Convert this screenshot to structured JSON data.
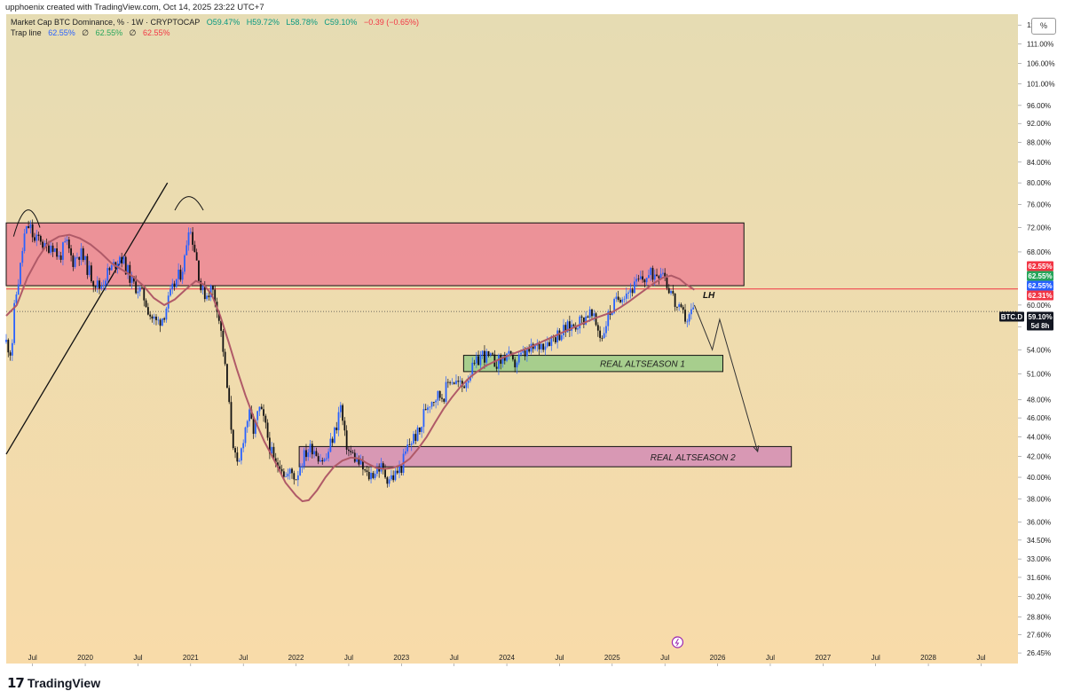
{
  "header": {
    "credit": "upphoenix created with TradingView.com, Oct 14, 2025 23:22 UTC+7",
    "symbol_line": {
      "name": "Market Cap BTC Dominance, % · 1W · CRYPTOCAP",
      "open": "O59.47%",
      "high": "H59.72%",
      "low": "L58.78%",
      "close": "C59.10%",
      "change": "−0.39 (−0.65%)"
    },
    "indicator_line": {
      "name": "Trap line",
      "v1": "62.55%",
      "sep1": "∅",
      "v2": "62.55%",
      "sep2": "∅",
      "v3": "62.55%"
    },
    "scale_button": "%"
  },
  "footer": {
    "brand": "TradingView",
    "brand_mark": "17"
  },
  "colors": {
    "bg_top": "#e6dcb3",
    "bg_bottom": "#f8dba9",
    "up": "#2962ff",
    "down": "#111111",
    "ma": "#b05a68",
    "red_zone": "#ec8a96",
    "green_zone": "#9fcc8a",
    "purple_zone": "#d590b5",
    "hline_red": "#f23645",
    "blue": "#2962ff",
    "green": "#26a65b",
    "red": "#f23645"
  },
  "chart_data": {
    "type": "candlestick",
    "scale": "log",
    "ylim": [
      25.8,
      119
    ],
    "x_range": [
      "2019-04",
      "2028-10"
    ],
    "x_ticks": [
      {
        "t": 2019.5,
        "label": "Jul"
      },
      {
        "t": 2020.0,
        "label": "2020"
      },
      {
        "t": 2020.5,
        "label": "Jul"
      },
      {
        "t": 2021.0,
        "label": "2021"
      },
      {
        "t": 2021.5,
        "label": "Jul"
      },
      {
        "t": 2022.0,
        "label": "2022"
      },
      {
        "t": 2022.5,
        "label": "Jul"
      },
      {
        "t": 2023.0,
        "label": "2023"
      },
      {
        "t": 2023.5,
        "label": "Jul"
      },
      {
        "t": 2024.0,
        "label": "2024"
      },
      {
        "t": 2024.5,
        "label": "Jul"
      },
      {
        "t": 2025.0,
        "label": "2025"
      },
      {
        "t": 2025.5,
        "label": "Jul"
      },
      {
        "t": 2026.0,
        "label": "2026"
      },
      {
        "t": 2026.5,
        "label": "Jul"
      },
      {
        "t": 2027.0,
        "label": "2027"
      },
      {
        "t": 2027.5,
        "label": "Jul"
      },
      {
        "t": 2028.0,
        "label": "2028"
      },
      {
        "t": 2028.5,
        "label": "Jul"
      }
    ],
    "y_ticks": [
      {
        "v": 116,
        "label": "116.00%"
      },
      {
        "v": 111,
        "label": "111.00%"
      },
      {
        "v": 106,
        "label": "106.00%"
      },
      {
        "v": 101,
        "label": "101.00%"
      },
      {
        "v": 96,
        "label": "96.00%"
      },
      {
        "v": 92,
        "label": "92.00%"
      },
      {
        "v": 88,
        "label": "88.00%"
      },
      {
        "v": 84,
        "label": "84.00%"
      },
      {
        "v": 80,
        "label": "80.00%"
      },
      {
        "v": 76,
        "label": "76.00%"
      },
      {
        "v": 72,
        "label": "72.00%"
      },
      {
        "v": 68,
        "label": "68.00%"
      },
      {
        "v": 60,
        "label": "60.00%"
      },
      {
        "v": 57,
        "label": "57.00%"
      },
      {
        "v": 54,
        "label": "54.00%"
      },
      {
        "v": 51,
        "label": "51.00%"
      },
      {
        "v": 48,
        "label": "48.00%"
      },
      {
        "v": 46,
        "label": "46.00%"
      },
      {
        "v": 44,
        "label": "44.00%"
      },
      {
        "v": 42,
        "label": "42.00%"
      },
      {
        "v": 40,
        "label": "40.00%"
      },
      {
        "v": 38,
        "label": "38.00%"
      },
      {
        "v": 36,
        "label": "36.00%"
      },
      {
        "v": 34.5,
        "label": "34.50%"
      },
      {
        "v": 33,
        "label": "33.00%"
      },
      {
        "v": 31.6,
        "label": "31.60%"
      },
      {
        "v": 30.2,
        "label": "30.20%"
      },
      {
        "v": 28.8,
        "label": "28.80%"
      },
      {
        "v": 27.6,
        "label": "27.60%"
      },
      {
        "v": 26.45,
        "label": "26.45%"
      }
    ],
    "price_path": [
      [
        2019.25,
        55.0
      ],
      [
        2019.3,
        53.5
      ],
      [
        2019.33,
        60.0
      ],
      [
        2019.38,
        65.0
      ],
      [
        2019.42,
        70.5
      ],
      [
        2019.47,
        72.5
      ],
      [
        2019.52,
        69.5
      ],
      [
        2019.57,
        70.5
      ],
      [
        2019.62,
        68.3
      ],
      [
        2019.68,
        69.5
      ],
      [
        2019.75,
        67.0
      ],
      [
        2019.82,
        69.5
      ],
      [
        2019.88,
        66.5
      ],
      [
        2019.95,
        68.0
      ],
      [
        2020.02,
        65.5
      ],
      [
        2020.08,
        63.5
      ],
      [
        2020.14,
        62.5
      ],
      [
        2020.2,
        64.5
      ],
      [
        2020.28,
        66.0
      ],
      [
        2020.33,
        67.5
      ],
      [
        2020.4,
        65.0
      ],
      [
        2020.45,
        63.0
      ],
      [
        2020.5,
        62.5
      ],
      [
        2020.56,
        61.0
      ],
      [
        2020.62,
        58.5
      ],
      [
        2020.68,
        57.5
      ],
      [
        2020.74,
        58.5
      ],
      [
        2020.8,
        61.0
      ],
      [
        2020.86,
        63.5
      ],
      [
        2020.9,
        64.5
      ],
      [
        2020.94,
        66.5
      ],
      [
        2020.98,
        72.5
      ],
      [
        2021.02,
        70.0
      ],
      [
        2021.06,
        66.5
      ],
      [
        2021.1,
        62.0
      ],
      [
        2021.15,
        61.5
      ],
      [
        2021.2,
        62.5
      ],
      [
        2021.25,
        60.0
      ],
      [
        2021.3,
        55.0
      ],
      [
        2021.34,
        50.0
      ],
      [
        2021.38,
        45.5
      ],
      [
        2021.42,
        42.0
      ],
      [
        2021.45,
        40.5
      ],
      [
        2021.5,
        44.0
      ],
      [
        2021.55,
        46.5
      ],
      [
        2021.6,
        44.5
      ],
      [
        2021.65,
        47.0
      ],
      [
        2021.7,
        45.5
      ],
      [
        2021.75,
        43.0
      ],
      [
        2021.8,
        41.0
      ],
      [
        2021.85,
        41.5
      ],
      [
        2021.9,
        40.0
      ],
      [
        2021.95,
        40.5
      ],
      [
        2022.0,
        40.0
      ],
      [
        2022.05,
        41.5
      ],
      [
        2022.1,
        42.5
      ],
      [
        2022.16,
        43.0
      ],
      [
        2022.22,
        42.0
      ],
      [
        2022.28,
        41.5
      ],
      [
        2022.32,
        43.0
      ],
      [
        2022.38,
        45.0
      ],
      [
        2022.42,
        47.5
      ],
      [
        2022.46,
        44.0
      ],
      [
        2022.5,
        42.5
      ],
      [
        2022.55,
        42.0
      ],
      [
        2022.62,
        41.0
      ],
      [
        2022.68,
        40.0
      ],
      [
        2022.74,
        40.5
      ],
      [
        2022.8,
        41.0
      ],
      [
        2022.86,
        40.0
      ],
      [
        2022.92,
        40.0
      ],
      [
        2023.0,
        41.0
      ],
      [
        2023.06,
        43.0
      ],
      [
        2023.12,
        44.0
      ],
      [
        2023.18,
        44.5
      ],
      [
        2023.22,
        47.0
      ],
      [
        2023.28,
        48.0
      ],
      [
        2023.34,
        48.5
      ],
      [
        2023.4,
        48.5
      ],
      [
        2023.46,
        50.5
      ],
      [
        2023.52,
        50.0
      ],
      [
        2023.58,
        49.5
      ],
      [
        2023.64,
        51.0
      ],
      [
        2023.7,
        52.0
      ],
      [
        2023.76,
        53.5
      ],
      [
        2023.82,
        53.0
      ],
      [
        2023.88,
        52.5
      ],
      [
        2023.94,
        52.5
      ],
      [
        2024.0,
        53.5
      ],
      [
        2024.06,
        52.0
      ],
      [
        2024.12,
        53.0
      ],
      [
        2024.18,
        53.5
      ],
      [
        2024.24,
        54.0
      ],
      [
        2024.3,
        54.5
      ],
      [
        2024.36,
        55.0
      ],
      [
        2024.42,
        55.5
      ],
      [
        2024.48,
        56.0
      ],
      [
        2024.54,
        56.5
      ],
      [
        2024.6,
        57.0
      ],
      [
        2024.66,
        57.5
      ],
      [
        2024.72,
        58.0
      ],
      [
        2024.78,
        59.0
      ],
      [
        2024.84,
        57.5
      ],
      [
        2024.9,
        55.5
      ],
      [
        2024.96,
        58.5
      ],
      [
        2025.02,
        60.0
      ],
      [
        2025.08,
        61.5
      ],
      [
        2025.14,
        62.0
      ],
      [
        2025.2,
        62.5
      ],
      [
        2025.26,
        63.5
      ],
      [
        2025.32,
        64.0
      ],
      [
        2025.38,
        64.5
      ],
      [
        2025.44,
        65.0
      ],
      [
        2025.48,
        65.5
      ],
      [
        2025.52,
        63.0
      ],
      [
        2025.56,
        62.0
      ],
      [
        2025.6,
        60.0
      ],
      [
        2025.64,
        59.0
      ],
      [
        2025.68,
        58.5
      ],
      [
        2025.72,
        58.0
      ],
      [
        2025.76,
        59.5
      ],
      [
        2025.78,
        59.1
      ]
    ],
    "ma_path": [
      [
        2019.25,
        58.5
      ],
      [
        2019.35,
        60.0
      ],
      [
        2019.45,
        64.0
      ],
      [
        2019.55,
        67.0
      ],
      [
        2019.65,
        69.5
      ],
      [
        2019.75,
        70.5
      ],
      [
        2019.85,
        70.8
      ],
      [
        2019.95,
        70.2
      ],
      [
        2020.05,
        69.2
      ],
      [
        2020.15,
        67.8
      ],
      [
        2020.25,
        66.2
      ],
      [
        2020.35,
        65.2
      ],
      [
        2020.45,
        64.2
      ],
      [
        2020.55,
        62.8
      ],
      [
        2020.65,
        61.0
      ],
      [
        2020.75,
        60.0
      ],
      [
        2020.85,
        60.8
      ],
      [
        2020.95,
        62.2
      ],
      [
        2021.05,
        63.5
      ],
      [
        2021.12,
        63.0
      ],
      [
        2021.2,
        61.5
      ],
      [
        2021.28,
        58.5
      ],
      [
        2021.36,
        55.0
      ],
      [
        2021.44,
        51.5
      ],
      [
        2021.52,
        48.5
      ],
      [
        2021.6,
        46.0
      ],
      [
        2021.7,
        43.5
      ],
      [
        2021.8,
        41.5
      ],
      [
        2021.9,
        39.5
      ],
      [
        2022.0,
        38.3
      ],
      [
        2022.06,
        37.8
      ],
      [
        2022.12,
        37.9
      ],
      [
        2022.2,
        38.8
      ],
      [
        2022.28,
        40.0
      ],
      [
        2022.36,
        41.0
      ],
      [
        2022.44,
        41.6
      ],
      [
        2022.52,
        41.9
      ],
      [
        2022.6,
        41.8
      ],
      [
        2022.68,
        41.3
      ],
      [
        2022.76,
        40.9
      ],
      [
        2022.84,
        40.8
      ],
      [
        2022.92,
        40.9
      ],
      [
        2023.0,
        41.2
      ],
      [
        2023.08,
        41.8
      ],
      [
        2023.16,
        42.8
      ],
      [
        2023.24,
        44.0
      ],
      [
        2023.32,
        45.5
      ],
      [
        2023.4,
        47.0
      ],
      [
        2023.48,
        48.3
      ],
      [
        2023.56,
        49.5
      ],
      [
        2023.64,
        50.5
      ],
      [
        2023.72,
        51.3
      ],
      [
        2023.8,
        52.0
      ],
      [
        2023.88,
        52.5
      ],
      [
        2023.96,
        53.0
      ],
      [
        2024.04,
        53.4
      ],
      [
        2024.12,
        53.8
      ],
      [
        2024.2,
        54.2
      ],
      [
        2024.28,
        54.7
      ],
      [
        2024.36,
        55.2
      ],
      [
        2024.44,
        55.7
      ],
      [
        2024.52,
        56.2
      ],
      [
        2024.6,
        56.7
      ],
      [
        2024.68,
        57.2
      ],
      [
        2024.76,
        57.7
      ],
      [
        2024.84,
        58.2
      ],
      [
        2024.92,
        58.6
      ],
      [
        2025.0,
        59.0
      ],
      [
        2025.08,
        59.7
      ],
      [
        2025.16,
        60.5
      ],
      [
        2025.24,
        61.4
      ],
      [
        2025.32,
        62.3
      ],
      [
        2025.4,
        63.2
      ],
      [
        2025.48,
        64.0
      ],
      [
        2025.56,
        64.3
      ],
      [
        2025.64,
        63.8
      ],
      [
        2025.7,
        63.0
      ],
      [
        2025.78,
        62.2
      ]
    ],
    "zones": [
      {
        "name": "red",
        "x0": 2019.25,
        "x1": 2026.25,
        "y0": 62.8,
        "y1": 72.8,
        "label": ""
      },
      {
        "name": "green",
        "x0": 2023.59,
        "x1": 2026.05,
        "y0": 51.3,
        "y1": 53.3,
        "label": "REAL ALTSEASON 1"
      },
      {
        "name": "purple",
        "x0": 2022.03,
        "x1": 2026.7,
        "y0": 41.0,
        "y1": 43.0,
        "label": "REAL ALTSEASON 2"
      }
    ],
    "hlines": [
      {
        "v": 62.31,
        "kind": "solid"
      },
      {
        "v": 59.1,
        "kind": "dotted"
      }
    ],
    "lh_label": "LH",
    "price_labels": [
      {
        "text": "62.55%",
        "kind": "red"
      },
      {
        "text": "62.55%",
        "kind": "green"
      },
      {
        "text": "62.55%",
        "kind": "blue"
      },
      {
        "text": "62.31%",
        "kind": "red"
      },
      {
        "text": "59.10%",
        "kind": "current"
      },
      {
        "text": "BTC.D",
        "kind": "symbol"
      },
      {
        "text": "5d 8h",
        "kind": "countdown"
      }
    ],
    "projection": [
      [
        2025.78,
        60.0
      ],
      [
        2025.95,
        54.0
      ],
      [
        2026.02,
        58.0
      ],
      [
        2026.38,
        42.5
      ]
    ],
    "trendline": [
      [
        2019.25,
        49.5
      ],
      [
        2020.78,
        80.0
      ]
    ]
  }
}
